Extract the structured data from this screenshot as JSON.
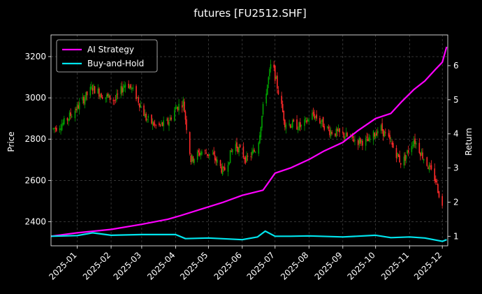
{
  "chart_data": {
    "type": "line",
    "title": "futures [FU2512.SHF]",
    "xlabel": "",
    "ylabel_left": "Price",
    "ylabel_right": "Return",
    "x_range": [
      "2024-12-08",
      "2025-12-06"
    ],
    "x_ticks": [
      "2025-01",
      "2025-02",
      "2025-03",
      "2025-04",
      "2025-05",
      "2025-06",
      "2025-07",
      "2025-08",
      "2025-09",
      "2025-10",
      "2025-11",
      "2025-12"
    ],
    "price_axis": {
      "ylim": [
        2283,
        3305
      ],
      "ticks": [
        2400,
        2600,
        2800,
        3000,
        3200
      ]
    },
    "return_axis": {
      "ylim": [
        0.72,
        6.9
      ],
      "ticks": [
        1,
        2,
        3,
        4,
        5,
        6
      ]
    },
    "grid": true,
    "legend": "top-left",
    "colors": {
      "background": "#000000",
      "grid": "#555555",
      "candle_up": "#00a000",
      "candle_down": "#ff2a2a",
      "ai_strategy": "#ff00ff",
      "buy_and_hold": "#00e5ee"
    },
    "candles": {
      "description_dates": [
        "2024-12-10",
        "2024-12-20",
        "2025-01-02",
        "2025-01-15",
        "2025-01-25",
        "2025-02-05",
        "2025-02-15",
        "2025-02-25",
        "2025-03-05",
        "2025-03-15",
        "2025-03-25",
        "2025-04-01",
        "2025-04-08",
        "2025-04-15",
        "2025-04-25",
        "2025-05-05",
        "2025-05-15",
        "2025-05-25",
        "2025-06-05",
        "2025-06-15",
        "2025-06-20",
        "2025-06-28",
        "2025-07-10",
        "2025-07-25",
        "2025-08-05",
        "2025-08-20",
        "2025-09-01",
        "2025-09-15",
        "2025-09-25",
        "2025-10-05",
        "2025-10-15",
        "2025-10-25",
        "2025-11-05",
        "2025-11-15",
        "2025-11-25",
        "2025-12-01"
      ],
      "close": [
        2850,
        2880,
        2960,
        3050,
        3010,
        2990,
        3080,
        3000,
        2900,
        2860,
        2880,
        2950,
        2980,
        2700,
        2740,
        2720,
        2640,
        2780,
        2700,
        2760,
        2950,
        3180,
        2880,
        2860,
        2920,
        2840,
        2820,
        2790,
        2790,
        2860,
        2780,
        2680,
        2800,
        2700,
        2600,
        2470
      ]
    },
    "series": [
      {
        "name": "AI Strategy",
        "x": [
          "2024-12-08",
          "2025-01-01",
          "2025-02-01",
          "2025-03-01",
          "2025-03-25",
          "2025-04-05",
          "2025-04-25",
          "2025-05-15",
          "2025-06-01",
          "2025-06-20",
          "2025-07-01",
          "2025-07-15",
          "2025-08-01",
          "2025-08-15",
          "2025-09-01",
          "2025-09-15",
          "2025-10-01",
          "2025-10-15",
          "2025-10-25",
          "2025-11-05",
          "2025-11-15",
          "2025-11-25",
          "2025-12-01",
          "2025-12-05"
        ],
        "values": [
          1.0,
          1.1,
          1.2,
          1.35,
          1.5,
          1.6,
          1.8,
          2.0,
          2.2,
          2.35,
          2.85,
          3.0,
          3.25,
          3.5,
          3.75,
          4.1,
          4.45,
          4.6,
          4.95,
          5.3,
          5.55,
          5.9,
          6.1,
          6.55
        ]
      },
      {
        "name": "Buy-and-Hold",
        "x": [
          "2024-12-08",
          "2025-01-01",
          "2025-01-15",
          "2025-02-01",
          "2025-03-01",
          "2025-04-01",
          "2025-04-10",
          "2025-05-01",
          "2025-06-01",
          "2025-06-15",
          "2025-06-22",
          "2025-07-01",
          "2025-07-15",
          "2025-08-01",
          "2025-09-01",
          "2025-10-01",
          "2025-10-15",
          "2025-11-01",
          "2025-11-15",
          "2025-12-01",
          "2025-12-05"
        ],
        "values": [
          1.0,
          1.02,
          1.1,
          1.03,
          1.05,
          1.05,
          0.93,
          0.95,
          0.9,
          0.98,
          1.15,
          1.0,
          1.0,
          1.01,
          0.98,
          1.03,
          0.96,
          0.98,
          0.95,
          0.85,
          0.9
        ]
      }
    ]
  }
}
